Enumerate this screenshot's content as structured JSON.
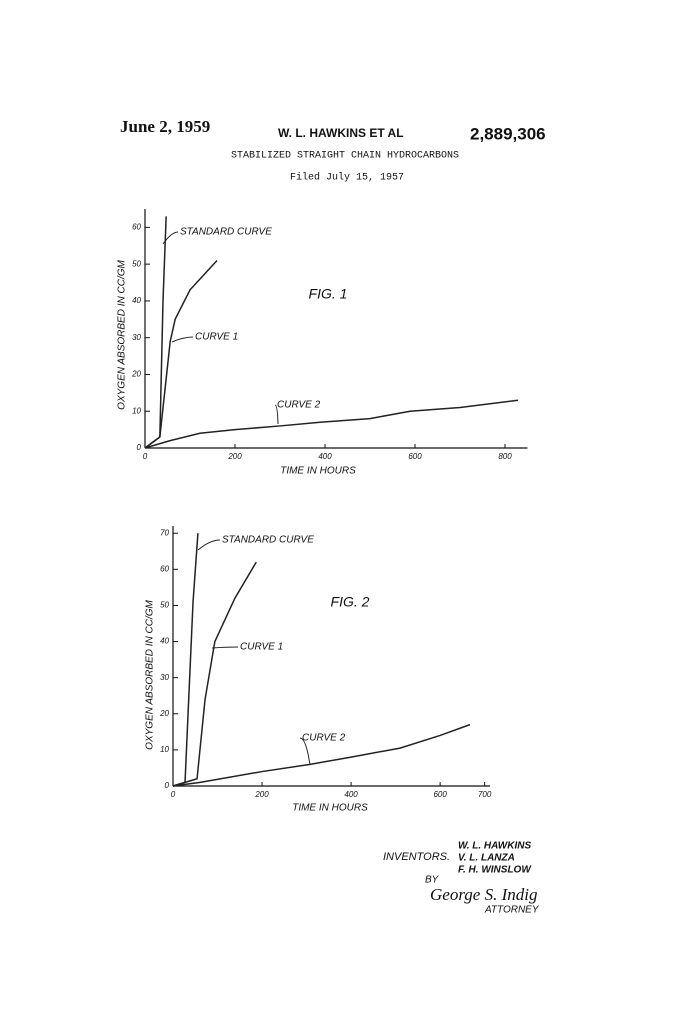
{
  "header": {
    "date": "June 2, 1959",
    "inventor": "W. L. HAWKINS ET AL",
    "number": "2,889,306",
    "title": "STABILIZED STRAIGHT CHAIN HYDROCARBONS",
    "filed": "Filed July 15, 1957"
  },
  "chart_data": [
    {
      "type": "line",
      "annotation": "FIG. 1",
      "x_label": "TIME IN HOURS",
      "y_label": "OXYGEN ABSORBED IN CC/GM",
      "xlim": [
        0,
        850
      ],
      "ylim": [
        0,
        65
      ],
      "xticks": [
        0,
        200,
        400,
        600,
        800
      ],
      "yticks": [
        0,
        10,
        20,
        30,
        40,
        50,
        60
      ],
      "color": "#222222",
      "series": [
        {
          "name": "STANDARD CURVE",
          "x": [
            0,
            33,
            40,
            47
          ],
          "values": [
            0,
            3,
            40,
            63
          ]
        },
        {
          "name": "CURVE 1",
          "x": [
            0,
            33,
            56,
            67,
            100,
            160
          ],
          "values": [
            0,
            3,
            29,
            35,
            43,
            51
          ]
        },
        {
          "name": "CURVE 2",
          "x": [
            0,
            56,
            122,
            200,
            300,
            389,
            500,
            589,
            700,
            829
          ],
          "values": [
            0,
            2,
            4,
            5,
            6,
            7,
            8,
            10,
            11,
            13
          ]
        }
      ]
    },
    {
      "type": "line",
      "annotation": "FIG. 2",
      "x_label": "TIME IN HOURS",
      "y_label": "OXYGEN ABSORBED IN CC/GM",
      "xlim": [
        0,
        712
      ],
      "ylim": [
        0,
        72
      ],
      "xticks": [
        0,
        200,
        400,
        600,
        700
      ],
      "yticks": [
        0,
        10,
        20,
        30,
        40,
        50,
        60,
        70
      ],
      "color": "#222222",
      "series": [
        {
          "name": "STANDARD CURVE",
          "x": [
            0,
            27,
            45,
            56
          ],
          "values": [
            0,
            1,
            51,
            70
          ]
        },
        {
          "name": "CURVE 1",
          "x": [
            0,
            54,
            72,
            94,
            139,
            187
          ],
          "values": [
            0,
            2,
            24,
            40,
            52,
            62
          ]
        },
        {
          "name": "CURVE 2",
          "x": [
            0,
            61,
            200,
            308,
            400,
            510,
            600,
            667
          ],
          "values": [
            0,
            1,
            4,
            6,
            8,
            10.5,
            14,
            17
          ]
        }
      ]
    }
  ],
  "footer": {
    "inventors_label": "INVENTORS.",
    "names": [
      "W. L. HAWKINS",
      "V. L. LANZA",
      "F. H. WINSLOW"
    ],
    "by": "BY",
    "signature": "George S. Indig",
    "attorney": "ATTORNEY"
  }
}
